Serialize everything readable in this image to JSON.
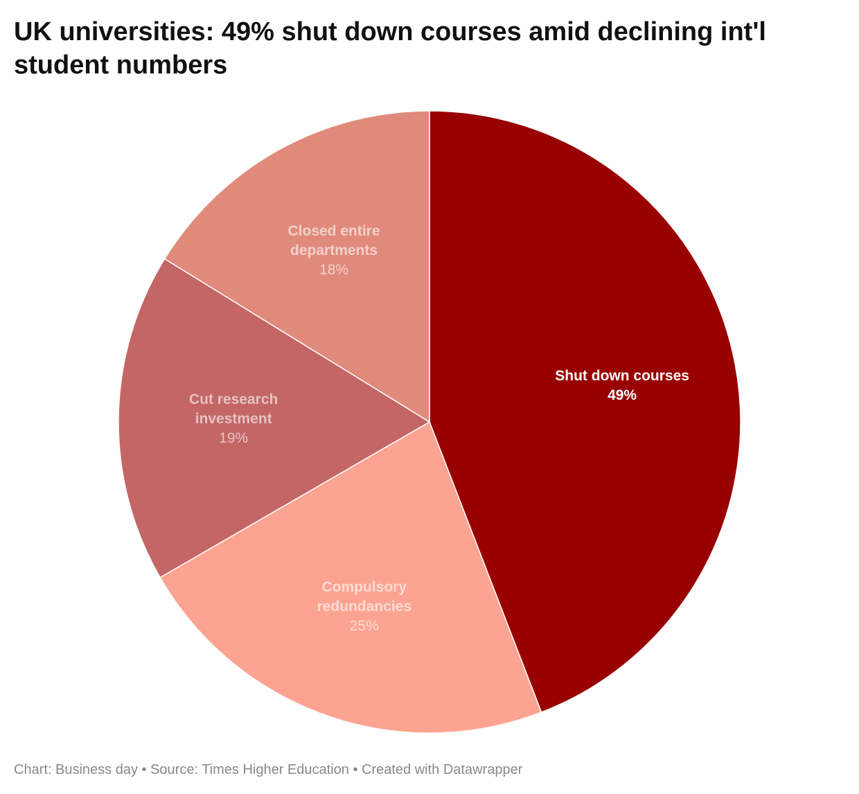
{
  "chart_data": {
    "type": "pie",
    "title": "UK universities: 49% shut down courses amid declining int'l student numbers",
    "categories": [
      "Shut down courses",
      "Compulsory redundancies",
      "Cut research investment",
      "Closed entire departments"
    ],
    "values": [
      49,
      25,
      19,
      18
    ],
    "value_labels": [
      "49%",
      "25%",
      "19%",
      "18%"
    ],
    "colors": [
      "#990000",
      "#fca491",
      "#c46666",
      "#e08a7c"
    ],
    "footer": "Chart: Business day • Source: Times Higher Education • Created with Datawrapper"
  }
}
